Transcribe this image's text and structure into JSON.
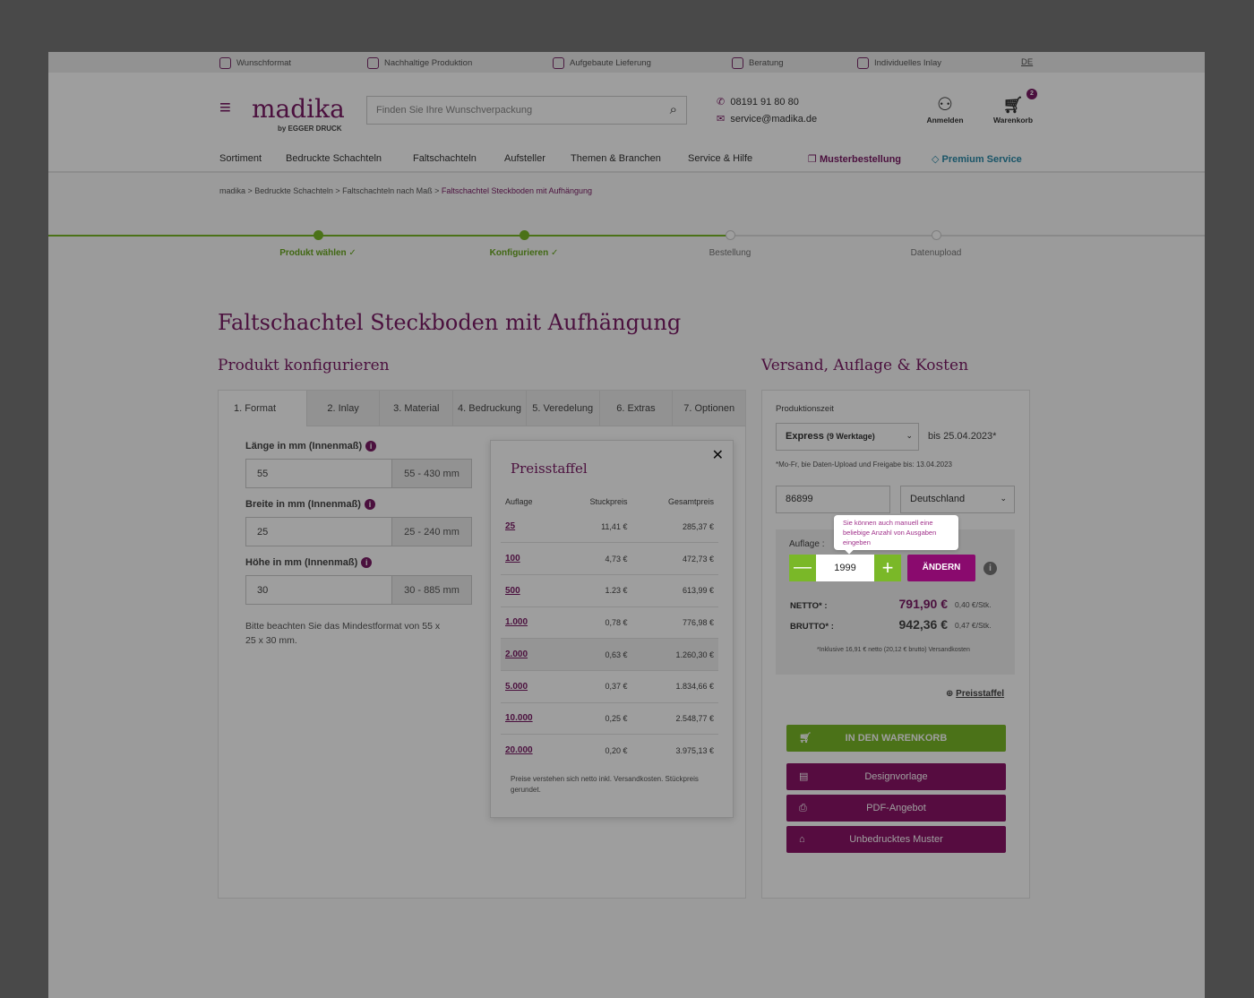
{
  "topbar": {
    "items": [
      {
        "label": "Wunschformat",
        "icon": "box-icon"
      },
      {
        "label": "Nachhaltige Produktion",
        "icon": "leaf-icon"
      },
      {
        "label": "Aufgebaute Lieferung",
        "icon": "delivery-icon"
      },
      {
        "label": "Beratung",
        "icon": "consulting-icon"
      },
      {
        "label": "Individuelles Inlay",
        "icon": "inlay-icon"
      }
    ],
    "lang": "DE"
  },
  "header": {
    "logo": "madika",
    "logo_sub": "by EGGER DRUCK",
    "search_placeholder": "Finden Sie Ihre Wunschverpackung",
    "phone": "08191 91 80 80",
    "email": "service@madika.de",
    "login": "Anmelden",
    "cart": "Warenkorb",
    "cart_count": "2"
  },
  "nav": {
    "items": [
      "Sortiment",
      "Bedruckte Schachteln",
      "Faltschachteln",
      "Aufsteller",
      "Themen & Branchen",
      "Service & Hilfe"
    ],
    "musterbestellung": "Musterbestellung",
    "premium": "Premium Service"
  },
  "breadcrumb": [
    "madika",
    "Bedruckte Schachteln",
    "Faltschachteln nach Maß",
    "Faltschachtel Steckboden mit Aufhängung"
  ],
  "progress": {
    "steps": [
      {
        "label": "Produkt wählen ✓",
        "done": true
      },
      {
        "label": "Konfigurieren ✓",
        "done": true
      },
      {
        "label": "Bestellung",
        "done": false
      },
      {
        "label": "Datenupload",
        "done": false
      }
    ]
  },
  "page_title": "Faltschachtel Steckboden mit Aufhängung",
  "left_title": "Produkt konfigurieren",
  "right_title": "Versand, Auflage & Kosten",
  "tabs": [
    "1. Format",
    "2. Inlay",
    "3. Material",
    "4. Bedruckung",
    "5. Veredelung",
    "6. Extras",
    "7. Optionen"
  ],
  "fields": [
    {
      "label": "Länge in mm (Innenmaß)",
      "value": "55",
      "range": "55 - 430 mm"
    },
    {
      "label": "Breite in mm (Innenmaß)",
      "value": "25",
      "range": "25 - 240 mm"
    },
    {
      "label": "Höhe in mm (Innenmaß)",
      "value": "30",
      "range": "30 - 885 mm"
    }
  ],
  "format_note": "Bitte beachten Sie das Mindestformat von 55 x 25 x 30 mm.",
  "popup": {
    "title": "Preisstaffel",
    "headers": [
      "Auflage",
      "Stuckpreis",
      "Gesamtpreis"
    ],
    "rows": [
      [
        "25",
        "11,41 €",
        "285,37 €"
      ],
      [
        "100",
        "4,73 €",
        "472,73 €"
      ],
      [
        "500",
        "1.23 €",
        "613,99 €"
      ],
      [
        "1.000",
        "0,78 €",
        "776,98 €"
      ],
      [
        "2.000",
        "0,63 €",
        "1.260,30 €"
      ],
      [
        "5.000",
        "0,37 €",
        "1.834,66 €"
      ],
      [
        "10.000",
        "0,25 €",
        "2.548,77 €"
      ],
      [
        "20.000",
        "0,20 €",
        "3.975,13 €"
      ]
    ],
    "note": "Preise verstehen sich netto inkl. Versandkosten. Stückpreis gerundet."
  },
  "right": {
    "prod_label": "Produktionszeit",
    "prod_select": "Express",
    "prod_select_sub": "(9 Werktage)",
    "until": "bis 25.04.2023*",
    "prod_note": "*Mo-Fr, bie Daten-Upload und Freigabe bis: 13.04.2023",
    "zip": "86899",
    "country": "Deutschland",
    "tooltip": "Sie können auch manuell eine beliebige Anzahl von Ausgaben eingeben",
    "auflage_label": "Auflage :",
    "quantity": "1999",
    "change": "ÄNDERN",
    "netto_label": "NETTO* :",
    "netto": "791,90 €",
    "netto_unit": "0,40 €/Stk.",
    "brutto_label": "BRUTTO* :",
    "brutto": "942,36 €",
    "brutto_unit": "0,47 €/Stk.",
    "shipping_note": "*Inklusive 16,91 € netto (20,12 € brutto) Versandkosten",
    "preisstaffel_link": "Preisstaffel",
    "cart_btn": "IN DEN WARENKORB",
    "design_btn": "Designvorlage",
    "pdf_btn": "PDF-Angebot",
    "sample_btn": "Unbedrucktes Muster"
  },
  "colors": {
    "brand": "#7a1a64",
    "green": "#7ab828",
    "dark_purple": "#8a1a70"
  }
}
